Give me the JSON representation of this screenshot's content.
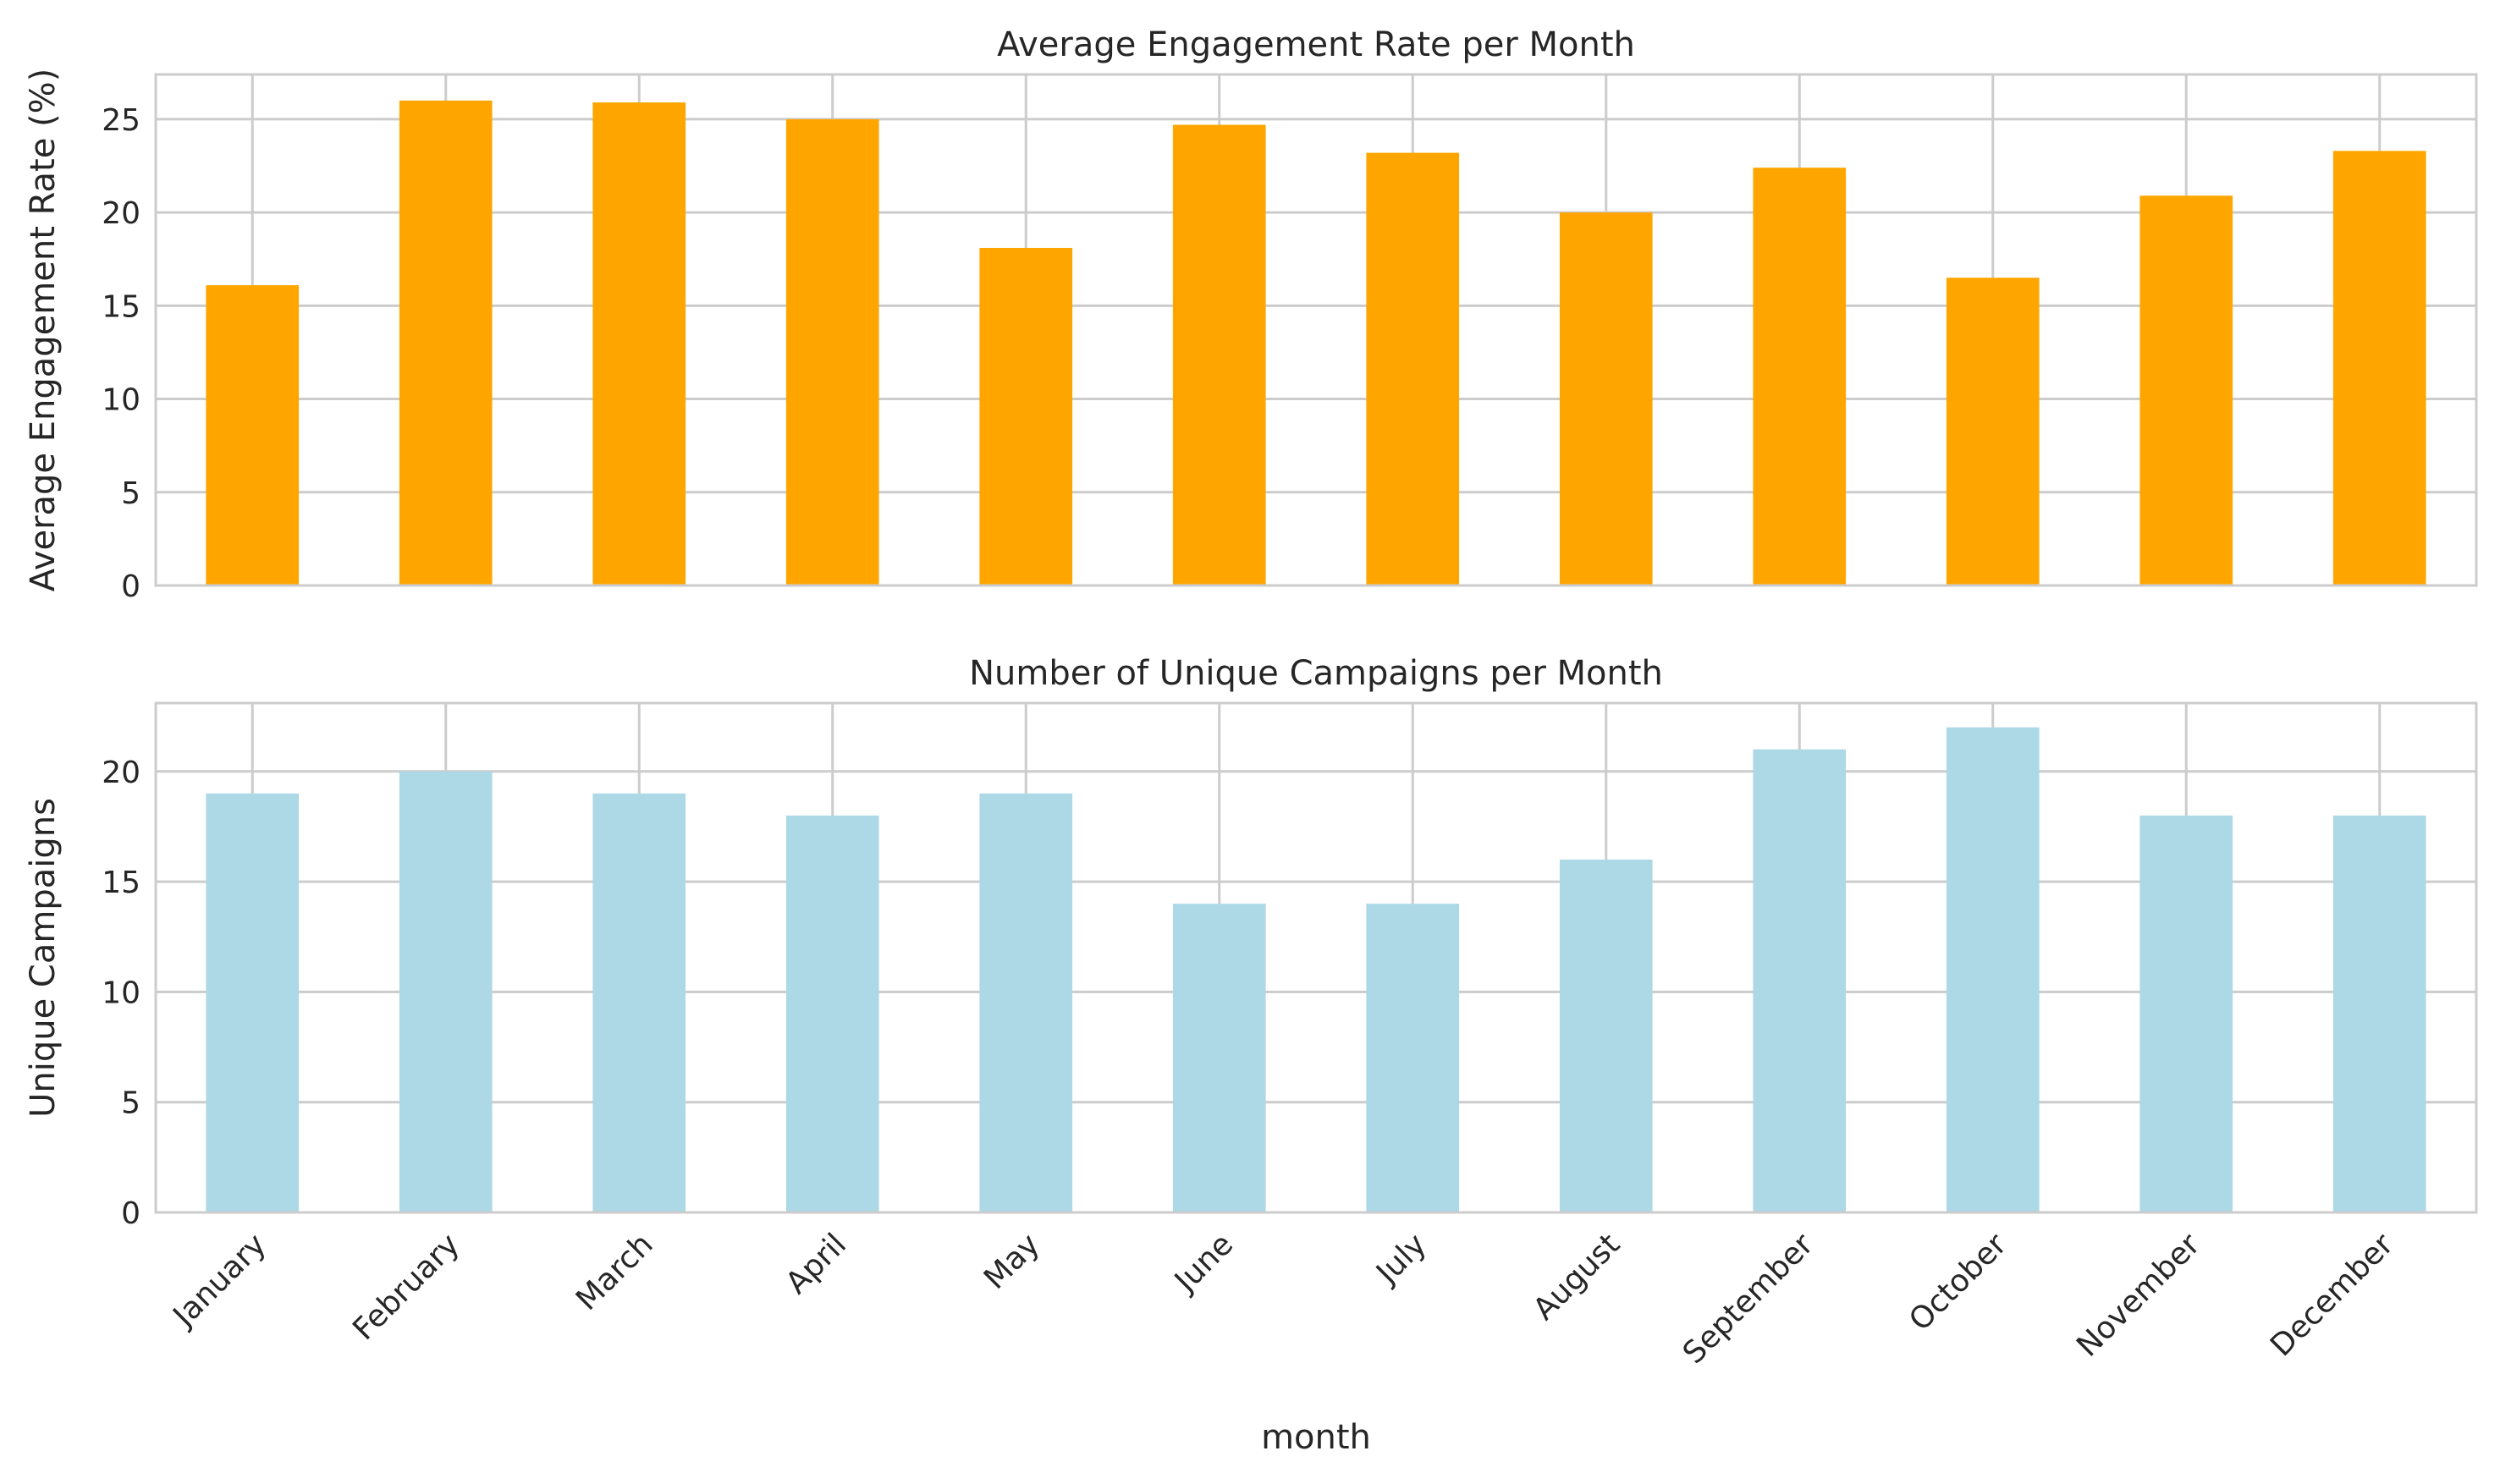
{
  "chart_data": [
    {
      "type": "bar",
      "title": "Average Engagement Rate per Month",
      "xlabel": "",
      "ylabel": "Average Engagement Rate (%)",
      "categories": [
        "January",
        "February",
        "March",
        "April",
        "May",
        "June",
        "July",
        "August",
        "September",
        "October",
        "November",
        "December"
      ],
      "values": [
        16.1,
        26.0,
        25.9,
        25.0,
        18.1,
        24.7,
        23.2,
        20.0,
        22.4,
        16.5,
        20.9,
        23.3
      ],
      "ylim": [
        0,
        27.4
      ],
      "yticks": [
        "0",
        "5",
        "10",
        "15",
        "20",
        "25"
      ],
      "color": "#FFA500",
      "grid": true,
      "show_xticklabels": false
    },
    {
      "type": "bar",
      "title": "Number of Unique Campaigns per Month",
      "xlabel": "month",
      "ylabel": "Unique Campaigns",
      "categories": [
        "January",
        "February",
        "March",
        "April",
        "May",
        "June",
        "July",
        "August",
        "September",
        "October",
        "November",
        "December"
      ],
      "values": [
        19,
        20,
        19,
        18,
        19,
        14,
        14,
        16,
        21,
        22,
        18,
        18
      ],
      "ylim": [
        0,
        23.1
      ],
      "yticks": [
        "0",
        "5",
        "10",
        "15",
        "20"
      ],
      "color": "#ADD8E6",
      "grid": true,
      "show_xticklabels": true
    }
  ]
}
